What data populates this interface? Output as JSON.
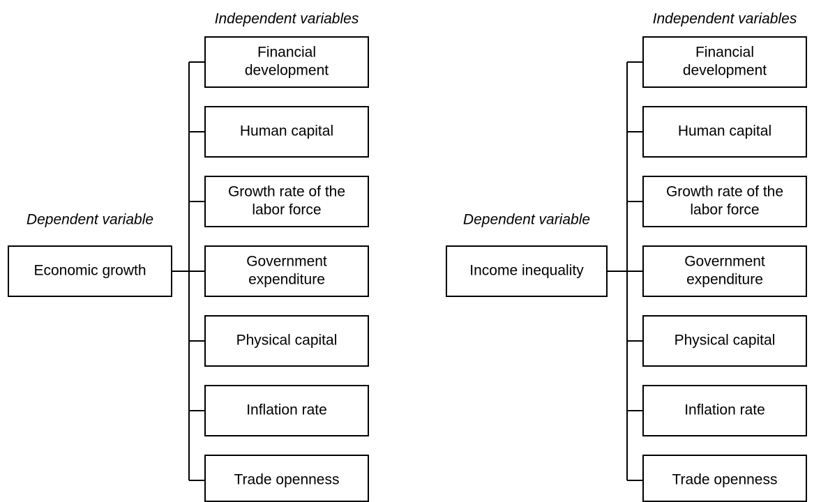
{
  "panels": [
    {
      "dependent_label": "Dependent variable",
      "dependent": "Economic growth",
      "independent_label": "Independent variables",
      "independent": [
        [
          "Financial",
          "development"
        ],
        [
          "Human capital"
        ],
        [
          "Growth rate of the",
          "labor force"
        ],
        [
          "Government",
          "expenditure"
        ],
        [
          "Physical capital"
        ],
        [
          "Inflation rate"
        ],
        [
          "Trade openness"
        ]
      ]
    },
    {
      "dependent_label": "Dependent variable",
      "dependent": "Income inequality",
      "independent_label": "Independent variables",
      "independent": [
        [
          "Financial",
          "development"
        ],
        [
          "Human capital"
        ],
        [
          "Growth rate of the",
          "labor force"
        ],
        [
          "Government",
          "expenditure"
        ],
        [
          "Physical capital"
        ],
        [
          "Inflation rate"
        ],
        [
          "Trade openness"
        ]
      ]
    }
  ]
}
